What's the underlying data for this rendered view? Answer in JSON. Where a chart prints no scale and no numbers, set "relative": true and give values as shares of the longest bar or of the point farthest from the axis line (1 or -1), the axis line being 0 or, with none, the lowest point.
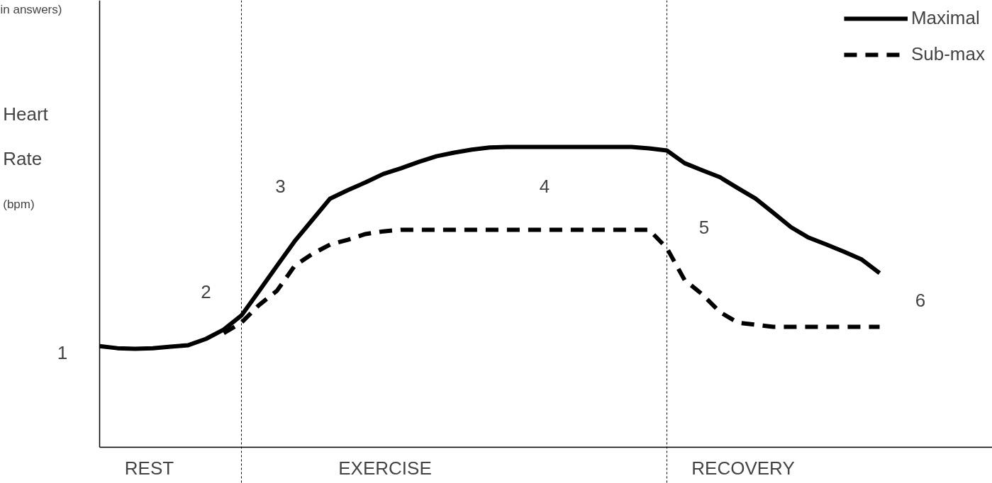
{
  "chart_data": {
    "type": "line",
    "relative": true,
    "ylabel": "Heart Rate (bpm)",
    "legend": "top right",
    "grid": false,
    "tick_labels": false,
    "categories": [
      null,
      null,
      null,
      null,
      null,
      null,
      null,
      null,
      null,
      null,
      null,
      null,
      null,
      null,
      null,
      null,
      null,
      null,
      null,
      null,
      null,
      null,
      null,
      null,
      null,
      null,
      null,
      null,
      null,
      null,
      null,
      null,
      null,
      null,
      null,
      null,
      null,
      null,
      null,
      null,
      null,
      null,
      null,
      null,
      null
    ],
    "series": [
      {
        "name": "Maximal",
        "color": "#000000",
        "line_style": "solid",
        "values": [
          0.337,
          0.33,
          0.328,
          0.33,
          0.335,
          0.34,
          0.361,
          0.392,
          0.439,
          0.521,
          0.604,
          0.686,
          0.757,
          0.828,
          0.856,
          0.882,
          0.91,
          0.929,
          0.95,
          0.969,
          0.981,
          0.991,
          0.998,
          1.0,
          1.0,
          1.0,
          1.0,
          1.0,
          1.0,
          1.0,
          1.0,
          0.995,
          0.988,
          0.946,
          0.922,
          0.899,
          0.863,
          0.828,
          0.781,
          0.733,
          0.698,
          0.675,
          0.651,
          0.625,
          0.58
        ]
      },
      {
        "name": "Sub-max",
        "color": "#000000",
        "line_style": "dashed",
        "values": [
          null,
          null,
          null,
          null,
          null,
          null,
          null,
          0.38,
          0.415,
          0.474,
          0.521,
          0.604,
          0.644,
          0.675,
          0.691,
          0.71,
          0.719,
          0.724,
          0.724,
          0.724,
          0.724,
          0.724,
          0.724,
          0.724,
          0.724,
          0.724,
          0.724,
          0.724,
          0.724,
          0.724,
          0.724,
          0.724,
          0.663,
          0.557,
          0.509,
          0.45,
          0.415,
          0.408,
          0.401,
          0.401,
          0.401,
          0.401,
          0.401,
          0.401,
          0.401
        ]
      }
    ],
    "annotations": [
      "in answers)",
      "1",
      "2",
      "3",
      "4",
      "5",
      "6",
      "REST",
      "EXERCISE",
      "RECOVERY"
    ]
  }
}
